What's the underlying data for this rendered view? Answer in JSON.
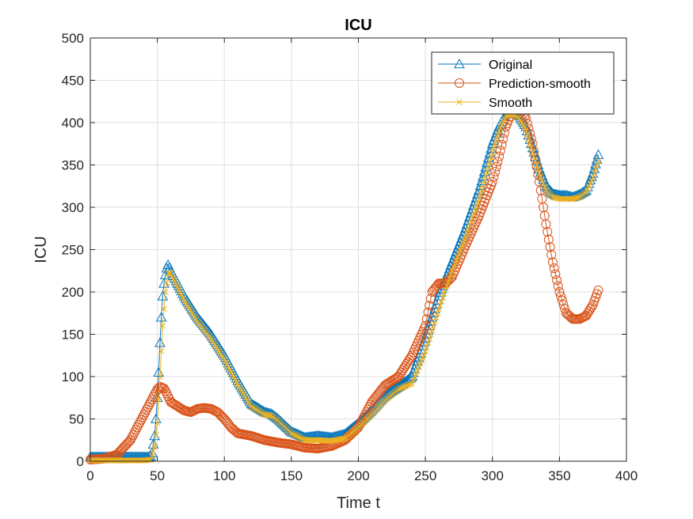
{
  "chart_data": {
    "type": "line",
    "title": "ICU",
    "xlabel": "Time t",
    "ylabel": "ICU",
    "xlim": [
      0,
      400
    ],
    "ylim": [
      0,
      500
    ],
    "xticks": [
      0,
      50,
      100,
      150,
      200,
      250,
      300,
      350,
      400
    ],
    "yticks": [
      0,
      50,
      100,
      150,
      200,
      250,
      300,
      350,
      400,
      450,
      500
    ],
    "grid": true,
    "legend_position": "top-right",
    "series": [
      {
        "name": "Original",
        "color": "#0072BD",
        "marker": "triangle",
        "x": [
          0,
          10,
          20,
          30,
          40,
          44,
          45,
          46,
          47,
          48,
          49,
          50,
          51,
          52,
          53,
          54,
          55,
          56,
          57,
          58,
          60,
          70,
          80,
          90,
          100,
          110,
          120,
          130,
          135,
          140,
          150,
          160,
          170,
          180,
          190,
          200,
          210,
          220,
          230,
          240,
          250,
          260,
          270,
          280,
          290,
          300,
          305,
          310,
          315,
          320,
          325,
          330,
          335,
          340,
          345,
          350,
          355,
          360,
          365,
          370,
          375,
          379
        ],
        "y": [
          5,
          5,
          5,
          5,
          5,
          5,
          6,
          10,
          20,
          30,
          50,
          75,
          105,
          140,
          170,
          195,
          210,
          220,
          228,
          232,
          225,
          195,
          170,
          150,
          125,
          95,
          68,
          58,
          56,
          50,
          35,
          28,
          30,
          28,
          32,
          45,
          60,
          78,
          88,
          100,
          145,
          195,
          235,
          275,
          320,
          375,
          395,
          410,
          412,
          408,
          395,
          370,
          345,
          325,
          316,
          314,
          314,
          312,
          315,
          320,
          340,
          362
        ]
      },
      {
        "name": "Prediction-smooth",
        "color": "#D95319",
        "marker": "circle",
        "x": [
          0,
          10,
          20,
          30,
          40,
          45,
          50,
          52,
          55,
          57,
          60,
          65,
          70,
          75,
          80,
          85,
          90,
          95,
          100,
          105,
          110,
          120,
          130,
          140,
          150,
          160,
          170,
          180,
          190,
          200,
          210,
          220,
          230,
          240,
          250,
          255,
          260,
          265,
          270,
          280,
          290,
          300,
          305,
          310,
          315,
          320,
          325,
          330,
          335,
          340,
          345,
          350,
          355,
          360,
          365,
          370,
          375,
          379
        ],
        "y": [
          2,
          3,
          8,
          25,
          55,
          70,
          85,
          88,
          86,
          80,
          70,
          65,
          60,
          58,
          62,
          63,
          62,
          58,
          50,
          40,
          33,
          30,
          25,
          22,
          20,
          16,
          15,
          18,
          25,
          40,
          70,
          90,
          100,
          125,
          160,
          200,
          210,
          210,
          218,
          255,
          290,
          330,
          360,
          395,
          415,
          418,
          405,
          375,
          330,
          280,
          235,
          200,
          175,
          168,
          168,
          172,
          185,
          202
        ]
      },
      {
        "name": "Smooth",
        "color": "#EDB120",
        "marker": "x",
        "x": [
          0,
          10,
          20,
          30,
          40,
          45,
          46,
          48,
          50,
          52,
          54,
          56,
          58,
          60,
          70,
          80,
          90,
          100,
          110,
          120,
          130,
          135,
          140,
          150,
          160,
          170,
          180,
          190,
          200,
          210,
          220,
          230,
          240,
          250,
          260,
          270,
          280,
          290,
          300,
          305,
          310,
          315,
          320,
          325,
          330,
          335,
          340,
          345,
          350,
          355,
          360,
          365,
          370,
          375,
          379
        ],
        "y": [
          1,
          1,
          1,
          1,
          1,
          2,
          6,
          18,
          45,
          100,
          160,
          200,
          222,
          222,
          190,
          165,
          145,
          120,
          90,
          65,
          55,
          54,
          48,
          33,
          25,
          25,
          24,
          27,
          40,
          55,
          72,
          85,
          92,
          130,
          180,
          225,
          265,
          310,
          365,
          390,
          408,
          410,
          405,
          392,
          365,
          340,
          320,
          312,
          310,
          310,
          310,
          312,
          318,
          335,
          355
        ]
      }
    ]
  }
}
